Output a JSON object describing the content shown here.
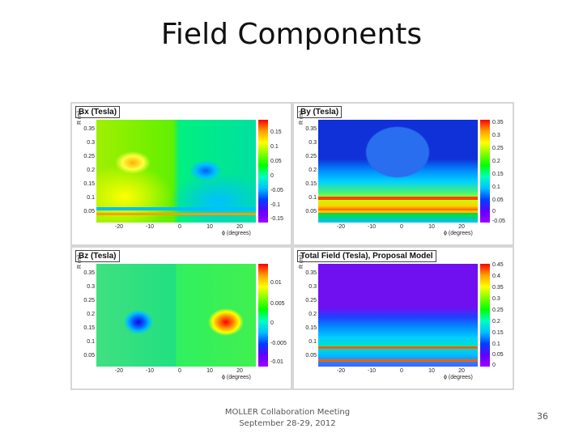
{
  "slide": {
    "title": "Field Components",
    "footer_line1": "MOLLER Collaboration Meeting",
    "footer_line2": "September 28-29, 2012",
    "page_number": "36"
  },
  "panels": [
    {
      "id": "bx",
      "title": "Bx (Tesla)",
      "y_axis_title": "R (m)",
      "x_axis_title": "ϕ (degrees)",
      "y_ticks": [
        "0.35",
        "0.3",
        "0.25",
        "0.2",
        "0.15",
        "0.1",
        "0.05"
      ],
      "x_ticks": [
        "-20",
        "-10",
        "0",
        "10",
        "20"
      ],
      "z_ticks": [
        "0.15",
        "0.1",
        "0.05",
        "0",
        "-0.05",
        "-0.1",
        "-0.15"
      ]
    },
    {
      "id": "by",
      "title": "By (Tesla)",
      "y_axis_title": "R (m)",
      "x_axis_title": "ϕ (degrees)",
      "y_ticks": [
        "0.35",
        "0.3",
        "0.25",
        "0.2",
        "0.15",
        "0.1",
        "0.05"
      ],
      "x_ticks": [
        "-20",
        "-10",
        "0",
        "10",
        "20"
      ],
      "z_ticks": [
        "0.35",
        "0.3",
        "0.25",
        "0.2",
        "0.15",
        "0.1",
        "0.05",
        "0",
        "-0.05"
      ]
    },
    {
      "id": "bz",
      "title": "Bz (Tesla)",
      "y_axis_title": "R (m)",
      "x_axis_title": "ϕ (degrees)",
      "y_ticks": [
        "0.35",
        "0.3",
        "0.25",
        "0.2",
        "0.15",
        "0.1",
        "0.05"
      ],
      "x_ticks": [
        "-20",
        "-10",
        "0",
        "10",
        "20"
      ],
      "z_ticks": [
        "0.01",
        "0.005",
        "0",
        "-0.005",
        "-0.01"
      ]
    },
    {
      "id": "total",
      "title": "Total Field (Tesla), Proposal Model",
      "y_axis_title": "R (m)",
      "x_axis_title": "ϕ (degrees)",
      "y_ticks": [
        "0.35",
        "0.3",
        "0.25",
        "0.2",
        "0.15",
        "0.1",
        "0.05"
      ],
      "x_ticks": [
        "-20",
        "-10",
        "0",
        "10",
        "20"
      ],
      "z_ticks": [
        "0.45",
        "0.4",
        "0.35",
        "0.3",
        "0.25",
        "0.2",
        "0.15",
        "0.1",
        "0.05",
        "0"
      ]
    }
  ],
  "colors": {
    "colorbar": [
      "#ff0000",
      "#ffa000",
      "#ffff00",
      "#80ff00",
      "#00ff00",
      "#00ffc0",
      "#00c0ff",
      "#0040ff",
      "#6000ff",
      "#a000ff"
    ]
  }
}
